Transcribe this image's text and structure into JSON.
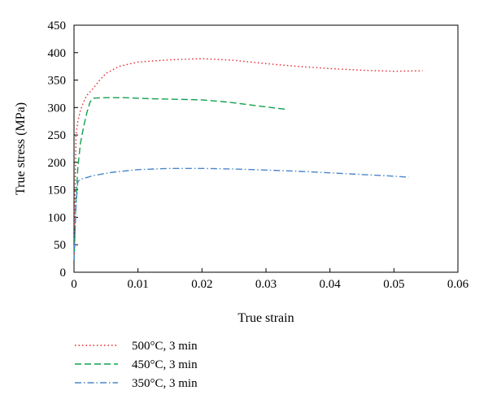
{
  "chart_data": {
    "type": "line",
    "xlabel": "True strain",
    "ylabel": "True stress (MPa)",
    "xlim": [
      0,
      0.06
    ],
    "ylim": [
      0,
      450
    ],
    "x_ticks": [
      0,
      0.01,
      0.02,
      0.03,
      0.04,
      0.05,
      0.06
    ],
    "x_tick_labels": [
      "0",
      "0.01",
      "0.02",
      "0.03",
      "0.04",
      "0.05",
      "0.06"
    ],
    "y_ticks": [
      0,
      50,
      100,
      150,
      200,
      250,
      300,
      350,
      400,
      450
    ],
    "y_tick_labels": [
      "0",
      "50",
      "100",
      "150",
      "200",
      "250",
      "300",
      "350",
      "400",
      "450"
    ],
    "grid": false,
    "legend_position": "below plot, left",
    "series": [
      {
        "name": "500°C, 3 min",
        "color": "#e8202a",
        "style": "dotted",
        "x": [
          0,
          0.0003,
          0.0006,
          0.001,
          0.0015,
          0.002,
          0.003,
          0.004,
          0.005,
          0.007,
          0.01,
          0.015,
          0.02,
          0.025,
          0.03,
          0.035,
          0.04,
          0.045,
          0.05,
          0.0545
        ],
        "y": [
          20,
          250,
          275,
          295,
          310,
          322,
          335,
          350,
          362,
          375,
          383,
          387,
          389,
          386,
          380,
          375,
          371,
          368,
          366,
          367
        ]
      },
      {
        "name": "450°C, 3 min",
        "color": "#10a050",
        "style": "dashed",
        "x": [
          0,
          0.0003,
          0.0006,
          0.001,
          0.0015,
          0.002,
          0.0025,
          0.003,
          0.005,
          0.008,
          0.012,
          0.016,
          0.02,
          0.024,
          0.028,
          0.033
        ],
        "y": [
          20,
          130,
          190,
          235,
          265,
          290,
          310,
          317,
          318,
          318,
          316,
          315,
          314,
          310,
          304,
          297
        ]
      },
      {
        "name": "350°C, 3 min",
        "color": "#4a86c8",
        "style": "dashdot",
        "x": [
          0,
          0.0003,
          0.0006,
          0.001,
          0.003,
          0.006,
          0.01,
          0.015,
          0.02,
          0.025,
          0.03,
          0.035,
          0.04,
          0.045,
          0.05,
          0.0523
        ],
        "y": [
          20,
          120,
          165,
          169,
          176,
          182,
          187,
          189,
          189,
          188,
          186,
          184,
          181,
          178,
          175,
          173
        ]
      }
    ]
  }
}
